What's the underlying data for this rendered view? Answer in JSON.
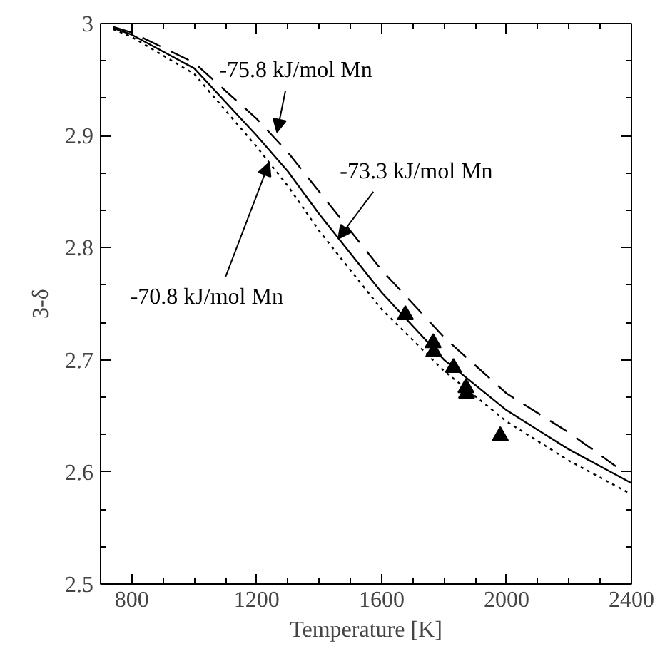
{
  "chart_data": {
    "type": "line",
    "xlabel": "Temperature [K]",
    "ylabel": "3-δ",
    "xlim": [
      700,
      2400
    ],
    "ylim": [
      2.5,
      3
    ],
    "xticks": [
      800,
      1200,
      1600,
      2000,
      2400
    ],
    "yticks": [
      2.5,
      2.6,
      2.7,
      2.8,
      2.9,
      3
    ],
    "grid": false,
    "marker": "none",
    "series": [
      {
        "color": "#000000",
        "line_style": "dashed",
        "x": [
          740,
          800,
          1000,
          1200,
          1300,
          1400,
          1500,
          1600,
          1800,
          2000,
          2200,
          2350
        ],
        "values": [
          2.997,
          2.992,
          2.965,
          2.915,
          2.885,
          2.85,
          2.815,
          2.78,
          2.72,
          2.67,
          2.635,
          2.605
        ]
      },
      {
        "color": "#000000",
        "line_style": "solid",
        "x": [
          740,
          800,
          1000,
          1200,
          1300,
          1400,
          1500,
          1600,
          1800,
          2000,
          2200,
          2400
        ],
        "values": [
          2.996,
          2.99,
          2.96,
          2.9,
          2.868,
          2.83,
          2.795,
          2.76,
          2.7,
          2.655,
          2.62,
          2.59
        ]
      },
      {
        "color": "#000000",
        "line_style": "dotted",
        "x": [
          740,
          800,
          1000,
          1200,
          1300,
          1400,
          1500,
          1600,
          1800,
          2000,
          2200,
          2400
        ],
        "values": [
          2.995,
          2.988,
          2.955,
          2.89,
          2.855,
          2.815,
          2.78,
          2.745,
          2.69,
          2.645,
          2.61,
          2.58
        ]
      },
      {
        "type": "scatter",
        "marker": "triangle",
        "color": "#000000",
        "x": [
          1676,
          1765,
          1767,
          1830,
          1870,
          1872,
          1980
        ],
        "values": [
          2.74,
          2.715,
          2.707,
          2.693,
          2.675,
          2.67,
          2.632
        ]
      }
    ],
    "annotations": [
      {
        "text": "-75.8 kJ/mol Mn",
        "x": 1265,
        "y": 2.903
      },
      {
        "text": "-73.3 kJ/mol Mn",
        "x": 1461,
        "y": 2.808
      },
      {
        "text": "-70.8 kJ/mol Mn",
        "x": 1240,
        "y": 2.876
      }
    ]
  }
}
